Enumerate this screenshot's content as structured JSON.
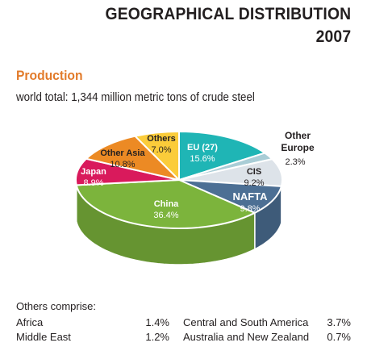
{
  "header": {
    "title_line1": "GEOGRAPHICAL DISTRIBUTION",
    "title_line2": "2007",
    "section": "Production",
    "subtitle": "world total: 1,344 million metric tons of crude steel"
  },
  "chart_data": {
    "type": "pie",
    "style": "3d",
    "unit": "%",
    "slices": [
      {
        "label": "EU (27)",
        "value": 15.6,
        "color": "#1fb5b5"
      },
      {
        "label": "Other Europe",
        "value": 2.3,
        "color": "#a9cdd6"
      },
      {
        "label": "CIS",
        "value": 9.2,
        "color": "#dde3e9"
      },
      {
        "label": "NAFTA",
        "value": 9.8,
        "color": "#4c6f94"
      },
      {
        "label": "China",
        "value": 36.4,
        "color": "#7cb43c"
      },
      {
        "label": "Japan",
        "value": 8.9,
        "color": "#d91a5c"
      },
      {
        "label": "Other Asia",
        "value": 10.8,
        "color": "#ec8a24"
      },
      {
        "label": "Others",
        "value": 7.0,
        "color": "#fbcc3a"
      }
    ]
  },
  "others": {
    "heading": "Others comprise:",
    "rows": [
      {
        "label": "Africa",
        "value": "1.4%"
      },
      {
        "label": "Middle East",
        "value": "1.2%"
      },
      {
        "label": "Central and South America",
        "value": "3.7%"
      },
      {
        "label": "Australia and New Zealand",
        "value": "0.7%"
      }
    ]
  }
}
